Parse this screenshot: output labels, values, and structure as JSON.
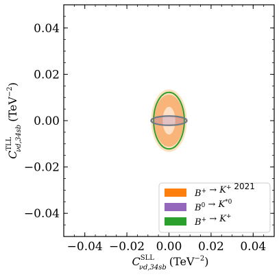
{
  "chart_data": {
    "type": "contour",
    "xlabel": "C^SLL_{νd,34sb} (TeV^-2)",
    "ylabel": "C^TLL_{νd,34sb} (TeV^-2)",
    "xlim": [
      -0.05,
      0.05
    ],
    "ylim": [
      -0.05,
      0.05
    ],
    "x_ticks": [
      -0.04,
      -0.02,
      0.0,
      0.02,
      0.04
    ],
    "x_tick_labels": [
      "−0.04",
      "−0.02",
      "0.00",
      "0.02",
      "0.04"
    ],
    "y_ticks": [
      -0.04,
      -0.02,
      0.0,
      0.02,
      0.04
    ],
    "y_tick_labels": [
      "−0.04",
      "−0.02",
      "0.00",
      "0.02",
      "0.04"
    ],
    "grid": false,
    "legend_position": "bottom-right",
    "series": [
      {
        "name": "B⁺ → K⁺ 2021",
        "color": "#ff7f0e",
        "regions": [
          {
            "level": "2σ",
            "center": [
              0,
              0
            ],
            "semi_axis_x": 0.0085,
            "semi_axis_y": 0.0135
          },
          {
            "level": "1σ",
            "center": [
              0,
              0
            ],
            "semi_axis_x": 0.007,
            "semi_axis_y": 0.0112
          },
          {
            "level": "core",
            "center": [
              0,
              0
            ],
            "semi_axis_x": 0.003,
            "semi_axis_y": 0.006
          }
        ]
      },
      {
        "name": "B⁰ → K*⁰",
        "color": "#9467bd",
        "regions": [
          {
            "level": "1σ",
            "center": [
              0,
              0
            ],
            "semi_axis_x": 0.0085,
            "semi_axis_y": 0.002
          }
        ]
      },
      {
        "name": "B⁺ → K⁺",
        "color": "#2ca02c",
        "regions": [
          {
            "level": "1σ",
            "center": [
              0,
              0
            ],
            "semi_axis_x": 0.0073,
            "semi_axis_y": 0.0122
          }
        ]
      }
    ]
  }
}
